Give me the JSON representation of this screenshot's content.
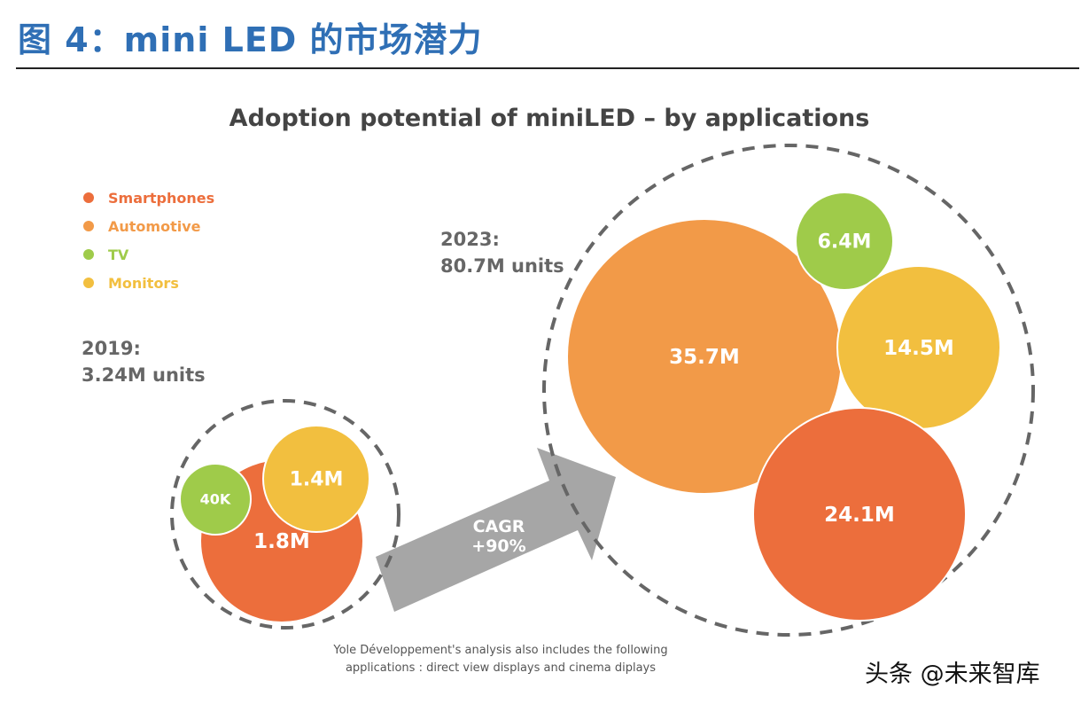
{
  "figure_title": "图 4：mini LED 的市场潜力",
  "watermark": "头条 @未来智库",
  "colors": {
    "Smartphones": "#ec6e3c",
    "Automotive": "#f29a48",
    "TV": "#9fcb4a",
    "Monitors": "#f2bf3f",
    "dash": "#666666",
    "arrow": "#a6a6a6",
    "title_blue": "#2f6fb5"
  },
  "chart_data": {
    "type": "scatter",
    "title": "Adoption potential of miniLED – by applications",
    "legend": {
      "placement": "left",
      "entries": [
        "Smartphones",
        "Automotive",
        "TV",
        "Monitors"
      ]
    },
    "groups": [
      {
        "label_year": "2019:",
        "label_total": "3.24M units",
        "points": [
          {
            "series": "Smartphones",
            "value": 1.8,
            "label": "1.8M"
          },
          {
            "series": "Monitors",
            "value": 1.4,
            "label": "1.4M"
          },
          {
            "series": "TV",
            "value": 0.04,
            "label": "40K"
          }
        ]
      },
      {
        "label_year": "2023:",
        "label_total": "80.7M units",
        "points": [
          {
            "series": "Automotive",
            "value": 35.7,
            "label": "35.7M"
          },
          {
            "series": "TV",
            "value": 6.4,
            "label": "6.4M"
          },
          {
            "series": "Monitors",
            "value": 14.5,
            "label": "14.5M"
          },
          {
            "series": "Smartphones",
            "value": 24.1,
            "label": "24.1M"
          }
        ]
      }
    ],
    "arrow_label": [
      "CAGR",
      "+90%"
    ],
    "footnote": [
      "Yole Développement's analysis also includes the following",
      "applications : direct view displays and cinema diplays"
    ]
  }
}
